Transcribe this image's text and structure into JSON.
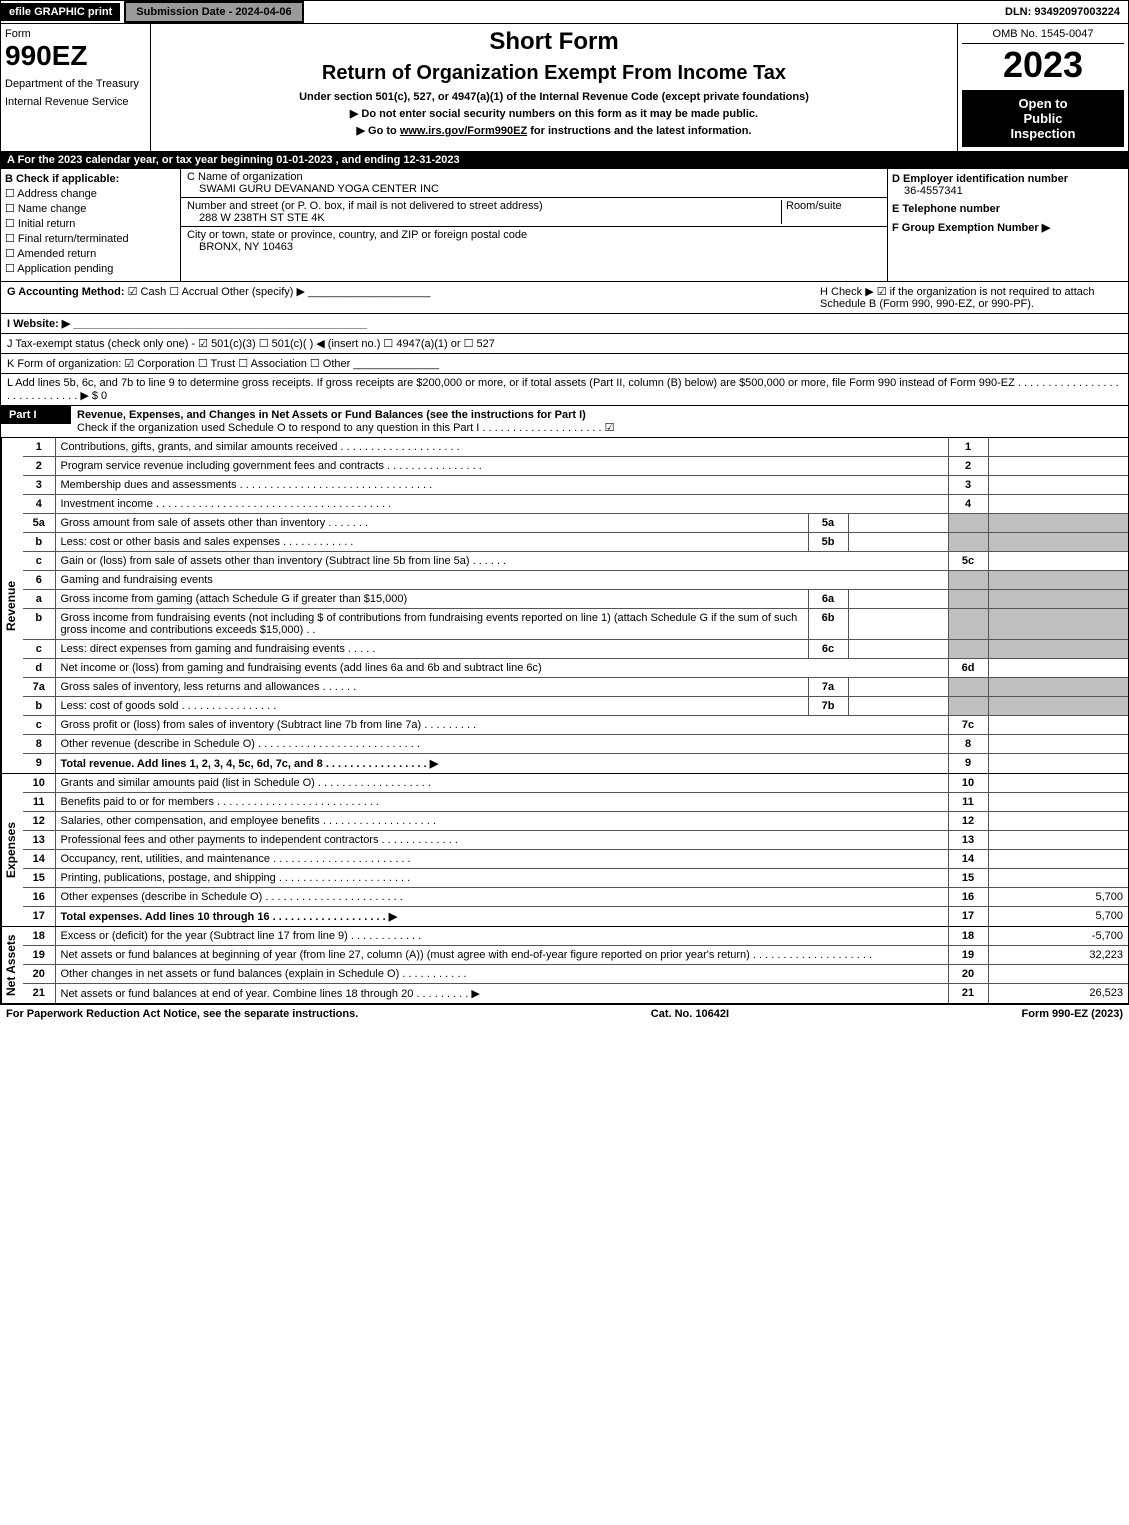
{
  "topbar": {
    "efile": "efile GRAPHIC print",
    "sub_date": "Submission Date - 2024-04-06",
    "dln": "DLN: 93492097003224"
  },
  "header": {
    "form_word": "Form",
    "form_no": "990EZ",
    "dept": "Department of the Treasury",
    "irs": "Internal Revenue Service",
    "short": "Short Form",
    "title": "Return of Organization Exempt From Income Tax",
    "under": "Under section 501(c), 527, or 4947(a)(1) of the Internal Revenue Code (except private foundations)",
    "ssn": "▶ Do not enter social security numbers on this form as it may be made public.",
    "goto_pre": "▶ Go to ",
    "goto_link": "www.irs.gov/Form990EZ",
    "goto_post": " for instructions and the latest information.",
    "omb": "OMB No. 1545-0047",
    "year": "2023",
    "open1": "Open to",
    "open2": "Public",
    "open3": "Inspection"
  },
  "row_a": "A  For the 2023 calendar year, or tax year beginning 01-01-2023 , and ending 12-31-2023",
  "section_b": {
    "title": "B  Check if applicable:",
    "items": [
      "☐ Address change",
      "☐ Name change",
      "☐ Initial return",
      "☐ Final return/terminated",
      "☐ Amended return",
      "☐ Application pending"
    ]
  },
  "section_c": {
    "c_label": "C Name of organization",
    "org_name": "SWAMI GURU DEVANAND YOGA CENTER INC",
    "street_label": "Number and street (or P. O. box, if mail is not delivered to street address)",
    "room_label": "Room/suite",
    "street": "288 W 238TH ST STE 4K",
    "city_label": "City or town, state or province, country, and ZIP or foreign postal code",
    "city": "BRONX, NY  10463"
  },
  "section_d": {
    "d_label": "D Employer identification number",
    "ein": "36-4557341",
    "e_label": "E Telephone number",
    "phone": "",
    "f_label": "F Group Exemption Number  ▶"
  },
  "row_g": {
    "label": "G Accounting Method:",
    "opts": "☑ Cash  ☐ Accrual  Other (specify) ▶",
    "line": "____________________"
  },
  "row_h": "H  Check ▶ ☑ if the organization is not required to attach Schedule B (Form 990, 990-EZ, or 990-PF).",
  "row_i": "I Website: ▶ ________________________________________________",
  "row_j": "J Tax-exempt status (check only one) - ☑ 501(c)(3) ☐ 501(c)(  ) ◀ (insert no.) ☐ 4947(a)(1) or ☐ 527",
  "row_k": "K Form of organization:  ☑ Corporation  ☐ Trust  ☐ Association  ☐ Other  ______________",
  "row_l": "L Add lines 5b, 6c, and 7b to line 9 to determine gross receipts. If gross receipts are $200,000 or more, or if total assets (Part II, column (B) below) are $500,000 or more, file Form 990 instead of Form 990-EZ  . . . . . . . . . . . . . . . . . . . . . . . . . . . . . ▶ $ 0",
  "part1": {
    "label": "Part I",
    "title": "Revenue, Expenses, and Changes in Net Assets or Fund Balances (see the instructions for Part I)",
    "check": "Check if the organization used Schedule O to respond to any question in this Part I . . . . . . . . . . . . . . . . . . . . ☑"
  },
  "revenue_label": "Revenue",
  "expenses_label": "Expenses",
  "netassets_label": "Net Assets",
  "revenue_lines": [
    {
      "no": "1",
      "desc": "Contributions, gifts, grants, and similar amounts received . . . . . . . . . . . . . . . . . . . .",
      "box": "1",
      "amt": ""
    },
    {
      "no": "2",
      "desc": "Program service revenue including government fees and contracts . . . . . . . . . . . . . . . .",
      "box": "2",
      "amt": ""
    },
    {
      "no": "3",
      "desc": "Membership dues and assessments . . . . . . . . . . . . . . . . . . . . . . . . . . . . . . . .",
      "box": "3",
      "amt": ""
    },
    {
      "no": "4",
      "desc": "Investment income . . . . . . . . . . . . . . . . . . . . . . . . . . . . . . . . . . . . . . .",
      "box": "4",
      "amt": ""
    },
    {
      "no": "5a",
      "desc": "Gross amount from sale of assets other than inventory . . . . . . .",
      "sub": "5a",
      "subval": "",
      "box": "",
      "amt": "",
      "shaded": true
    },
    {
      "no": "b",
      "desc": "Less: cost or other basis and sales expenses . . . . . . . . . . . .",
      "sub": "5b",
      "subval": "",
      "box": "",
      "amt": "",
      "shaded": true
    },
    {
      "no": "c",
      "desc": "Gain or (loss) from sale of assets other than inventory (Subtract line 5b from line 5a) . . . . . .",
      "box": "5c",
      "amt": ""
    },
    {
      "no": "6",
      "desc": "Gaming and fundraising events",
      "box": "",
      "amt": "",
      "shaded": true,
      "noamt": true
    },
    {
      "no": "a",
      "desc": "Gross income from gaming (attach Schedule G if greater than $15,000)",
      "sub": "6a",
      "subval": "",
      "box": "",
      "amt": "",
      "shaded": true
    },
    {
      "no": "b",
      "desc": "Gross income from fundraising events (not including $                  of contributions from fundraising events reported on line 1) (attach Schedule G if the sum of such gross income and contributions exceeds $15,000)  . .",
      "sub": "6b",
      "subval": "",
      "box": "",
      "amt": "",
      "shaded": true
    },
    {
      "no": "c",
      "desc": "Less: direct expenses from gaming and fundraising events  . . . . .",
      "sub": "6c",
      "subval": "",
      "box": "",
      "amt": "",
      "shaded": true
    },
    {
      "no": "d",
      "desc": "Net income or (loss) from gaming and fundraising events (add lines 6a and 6b and subtract line 6c)",
      "box": "6d",
      "amt": ""
    },
    {
      "no": "7a",
      "desc": "Gross sales of inventory, less returns and allowances . . . . . .",
      "sub": "7a",
      "subval": "",
      "box": "",
      "amt": "",
      "shaded": true
    },
    {
      "no": "b",
      "desc": "Less: cost of goods sold     . . . . . . . . . . . . . . . .",
      "sub": "7b",
      "subval": "",
      "box": "",
      "amt": "",
      "shaded": true
    },
    {
      "no": "c",
      "desc": "Gross profit or (loss) from sales of inventory (Subtract line 7b from line 7a) . . . . . . . . .",
      "box": "7c",
      "amt": ""
    },
    {
      "no": "8",
      "desc": "Other revenue (describe in Schedule O) . . . . . . . . . . . . . . . . . . . . . . . . . . .",
      "box": "8",
      "amt": ""
    },
    {
      "no": "9",
      "desc": "Total revenue. Add lines 1, 2, 3, 4, 5c, 6d, 7c, and 8  . . . . . . . . . . . . . . . . . ▶",
      "box": "9",
      "amt": "",
      "bold": true
    }
  ],
  "expense_lines": [
    {
      "no": "10",
      "desc": "Grants and similar amounts paid (list in Schedule O) . . . . . . . . . . . . . . . . . . .",
      "box": "10",
      "amt": ""
    },
    {
      "no": "11",
      "desc": "Benefits paid to or for members   . . . . . . . . . . . . . . . . . . . . . . . . . . .",
      "box": "11",
      "amt": ""
    },
    {
      "no": "12",
      "desc": "Salaries, other compensation, and employee benefits . . . . . . . . . . . . . . . . . . .",
      "box": "12",
      "amt": ""
    },
    {
      "no": "13",
      "desc": "Professional fees and other payments to independent contractors . . . . . . . . . . . . .",
      "box": "13",
      "amt": ""
    },
    {
      "no": "14",
      "desc": "Occupancy, rent, utilities, and maintenance . . . . . . . . . . . . . . . . . . . . . . .",
      "box": "14",
      "amt": ""
    },
    {
      "no": "15",
      "desc": "Printing, publications, postage, and shipping . . . . . . . . . . . . . . . . . . . . . .",
      "box": "15",
      "amt": ""
    },
    {
      "no": "16",
      "desc": "Other expenses (describe in Schedule O)   . . . . . . . . . . . . . . . . . . . . . . .",
      "box": "16",
      "amt": "5,700"
    },
    {
      "no": "17",
      "desc": "Total expenses. Add lines 10 through 16   . . . . . . . . . . . . . . . . . . .  ▶",
      "box": "17",
      "amt": "5,700",
      "bold": true
    }
  ],
  "netasset_lines": [
    {
      "no": "18",
      "desc": "Excess or (deficit) for the year (Subtract line 17 from line 9)     . . . . . . . . . . . .",
      "box": "18",
      "amt": "-5,700"
    },
    {
      "no": "19",
      "desc": "Net assets or fund balances at beginning of year (from line 27, column (A)) (must agree with end-of-year figure reported on prior year's return) . . . . . . . . . . . . . . . . . . . .",
      "box": "19",
      "amt": "32,223"
    },
    {
      "no": "20",
      "desc": "Other changes in net assets or fund balances (explain in Schedule O) . . . . . . . . . . .",
      "box": "20",
      "amt": ""
    },
    {
      "no": "21",
      "desc": "Net assets or fund balances at end of year. Combine lines 18 through 20 . . . . . . . . . ▶",
      "box": "21",
      "amt": "26,523"
    }
  ],
  "footer": {
    "left": "For Paperwork Reduction Act Notice, see the separate instructions.",
    "mid": "Cat. No. 10642I",
    "right": "Form 990-EZ (2023)"
  }
}
